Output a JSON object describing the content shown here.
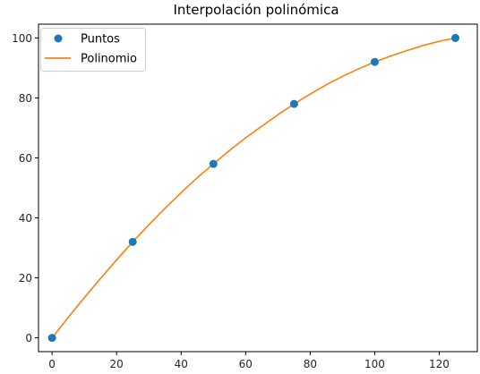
{
  "chart_data": {
    "type": "scatter",
    "title": "Interpolación polinómica",
    "xlabel": "",
    "ylabel": "",
    "xlim": [
      -4.2,
      131.8
    ],
    "ylim": [
      -4.6,
      104.6
    ],
    "xticks": [
      0,
      20,
      40,
      60,
      80,
      100,
      120
    ],
    "yticks": [
      0,
      20,
      40,
      60,
      80,
      100
    ],
    "grid": false,
    "legend_position": "upper-left",
    "series": [
      {
        "name": "Puntos",
        "kind": "scatter",
        "color": "#1f77b4",
        "x": [
          0,
          25,
          50,
          75,
          100,
          125
        ],
        "y": [
          0,
          32,
          58,
          78,
          92,
          100
        ]
      },
      {
        "name": "Polinomio",
        "kind": "line",
        "color": "#ff7f0e",
        "x": [
          0,
          5,
          10,
          15,
          20,
          25,
          30,
          35,
          40,
          45,
          50,
          55,
          60,
          65,
          70,
          75,
          80,
          85,
          90,
          95,
          100,
          105,
          110,
          115,
          120,
          125
        ],
        "y": [
          0,
          6.8,
          13.4,
          19.8,
          26.0,
          32.0,
          37.7,
          43.2,
          48.4,
          53.4,
          58.0,
          62.5,
          66.7,
          70.6,
          74.4,
          78.0,
          81.3,
          84.4,
          87.2,
          89.7,
          92.0,
          94.0,
          95.8,
          97.5,
          98.9,
          100.0
        ]
      }
    ]
  }
}
